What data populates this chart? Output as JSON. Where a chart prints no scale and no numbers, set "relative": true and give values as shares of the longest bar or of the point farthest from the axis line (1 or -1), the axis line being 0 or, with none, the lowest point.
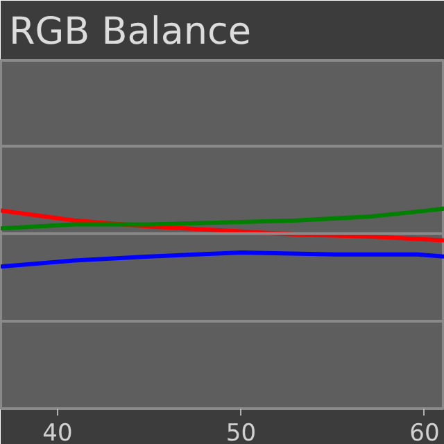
{
  "chart_data": {
    "type": "line",
    "title": "RGB Balance",
    "relative": true,
    "xlim": [
      36.9,
      61.1
    ],
    "xticks": [
      40,
      50,
      60
    ],
    "tick_labels": "x",
    "ref_lines": [
      {
        "axis": "y",
        "value": 0.437,
        "color": "#8a8a8a"
      },
      {
        "axis": "y",
        "value": 0.874,
        "color": "#8a8a8a"
      },
      {
        "axis": "y",
        "value": 1.311,
        "color": "#8a8a8a"
      }
    ],
    "series": [
      {
        "color": "#ff0000",
        "x": [
          36.9,
          40.9,
          45.0,
          49.0,
          53.0,
          57.1,
          61.1
        ],
        "values": [
          0.99,
          0.94,
          0.91,
          0.89,
          0.87,
          0.86,
          0.84
        ]
      },
      {
        "color": "#008000",
        "x": [
          36.9,
          40.9,
          45.0,
          49.0,
          53.0,
          57.1,
          60.2,
          61.1
        ],
        "values": [
          0.9,
          0.92,
          0.92,
          0.93,
          0.94,
          0.96,
          0.99,
          1.0
        ]
      },
      {
        "color": "#0000ff",
        "x": [
          36.9,
          40.9,
          45.0,
          50.0,
          55.1,
          59.6,
          61.1
        ],
        "values": [
          0.71,
          0.74,
          0.76,
          0.78,
          0.77,
          0.77,
          0.76
        ]
      }
    ]
  }
}
